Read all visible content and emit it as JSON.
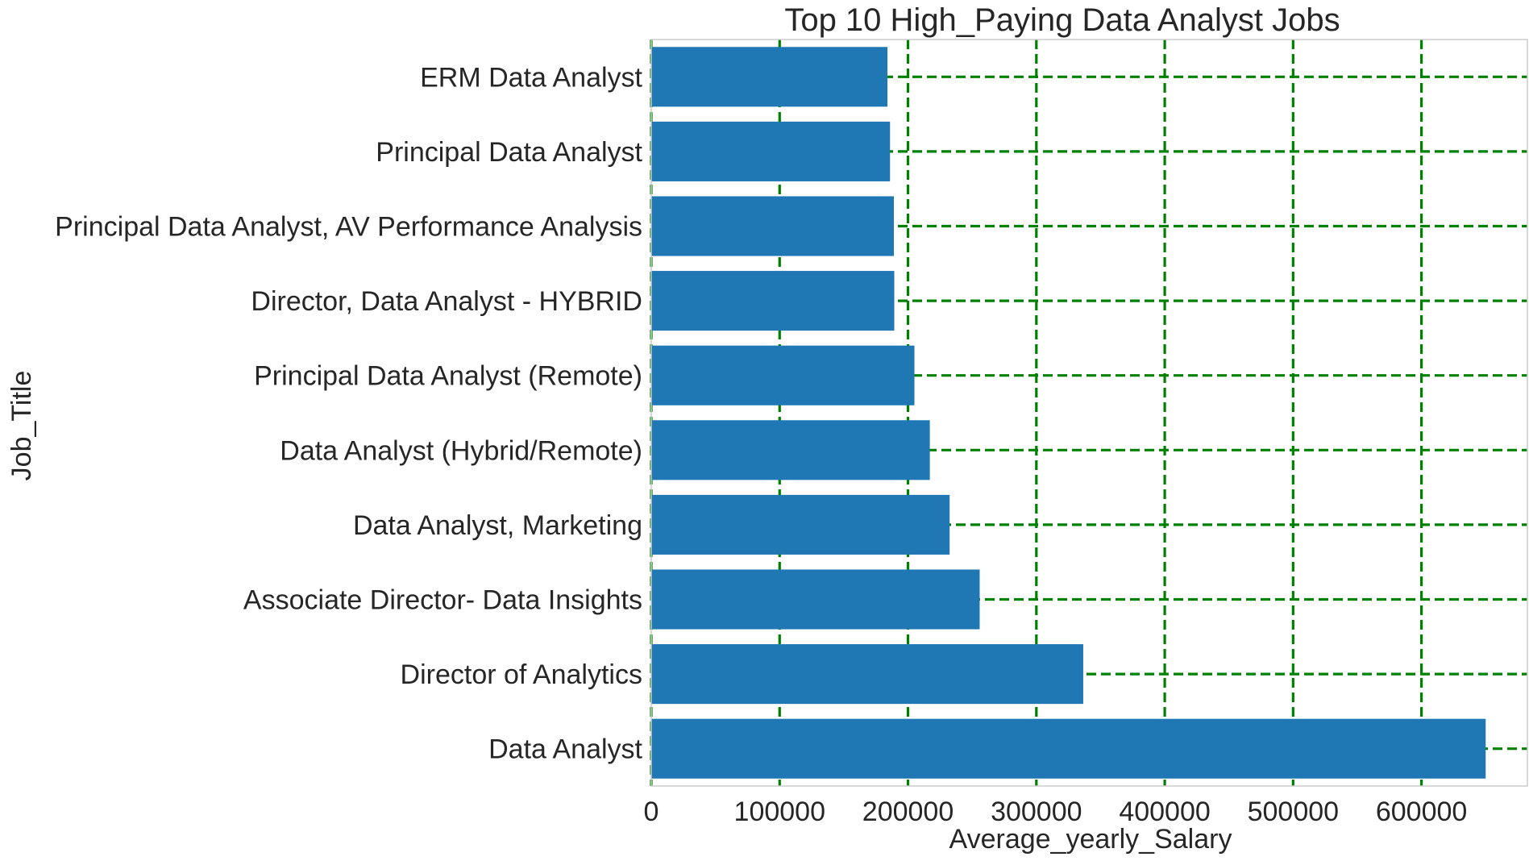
{
  "chart_data": {
    "type": "bar",
    "orientation": "horizontal",
    "title": "Top 10 High_Paying Data Analyst Jobs",
    "xlabel": "Average_yearly_Salary",
    "ylabel": "Job_Title",
    "categories": [
      "Data Analyst",
      "Director of Analytics",
      "Associate Director- Data Insights",
      "Data Analyst, Marketing",
      "Data Analyst (Hybrid/Remote)",
      "Principal Data Analyst (Remote)",
      "Director, Data Analyst - HYBRID",
      "Principal Data Analyst, AV Performance Analysis",
      "Principal Data Analyst",
      "ERM Data Analyst"
    ],
    "values": [
      650000,
      336500,
      255829.5,
      232423,
      217000,
      205000,
      189309,
      189000,
      186000,
      184000
    ],
    "xlim": [
      0,
      682500
    ],
    "xticks": [
      0,
      100000,
      200000,
      300000,
      400000,
      500000,
      600000
    ],
    "xtick_labels": [
      "0",
      "100000",
      "200000",
      "300000",
      "400000",
      "500000",
      "600000"
    ],
    "grid": true,
    "grid_style": "dashed",
    "colors": {
      "bar": "#1f77b4",
      "grid": "#008000",
      "text": "#262626",
      "frame": "#cccccc"
    }
  }
}
